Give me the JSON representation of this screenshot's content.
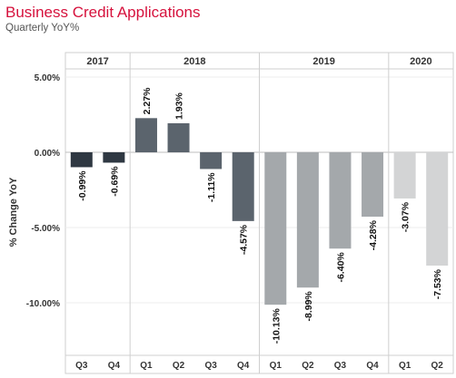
{
  "header": {
    "title": "Business Credit Applications",
    "subtitle": "Quarterly YoY%"
  },
  "chart_data": {
    "type": "bar",
    "title": "Business Credit Applications",
    "subtitle": "Quarterly YoY%",
    "xlabel": "",
    "ylabel": "% Change YoY",
    "ylim": [
      -13.5,
      5.5
    ],
    "yticks": [
      5,
      0,
      -5,
      -10
    ],
    "ytick_labels": [
      "5.00%",
      "0.00%",
      "-5.00%",
      "-10.00%"
    ],
    "grid": true,
    "groups": [
      {
        "label": "2017",
        "categories": [
          "Q3",
          "Q4"
        ],
        "values": [
          -0.99,
          -0.69
        ],
        "labels": [
          "-0.99%",
          "-0.69%"
        ],
        "color": "#2f3842"
      },
      {
        "label": "2018",
        "categories": [
          "Q1",
          "Q2",
          "Q3",
          "Q4"
        ],
        "values": [
          2.27,
          1.93,
          -1.11,
          -4.57
        ],
        "labels": [
          "2.27%",
          "1.93%",
          "-1.11%",
          "-4.57%"
        ],
        "color": "#5b646d"
      },
      {
        "label": "2019",
        "categories": [
          "Q1",
          "Q2",
          "Q3",
          "Q4"
        ],
        "values": [
          -10.13,
          -8.99,
          -6.4,
          -4.28
        ],
        "labels": [
          "-10.13%",
          "-8.99%",
          "-6.40%",
          "-4.28%"
        ],
        "color": "#a4a8ab"
      },
      {
        "label": "2020",
        "categories": [
          "Q1",
          "Q2"
        ],
        "values": [
          -3.07,
          -7.53
        ],
        "labels": [
          "-3.07%",
          "-7.53%"
        ],
        "color": "#d3d4d5"
      }
    ]
  }
}
